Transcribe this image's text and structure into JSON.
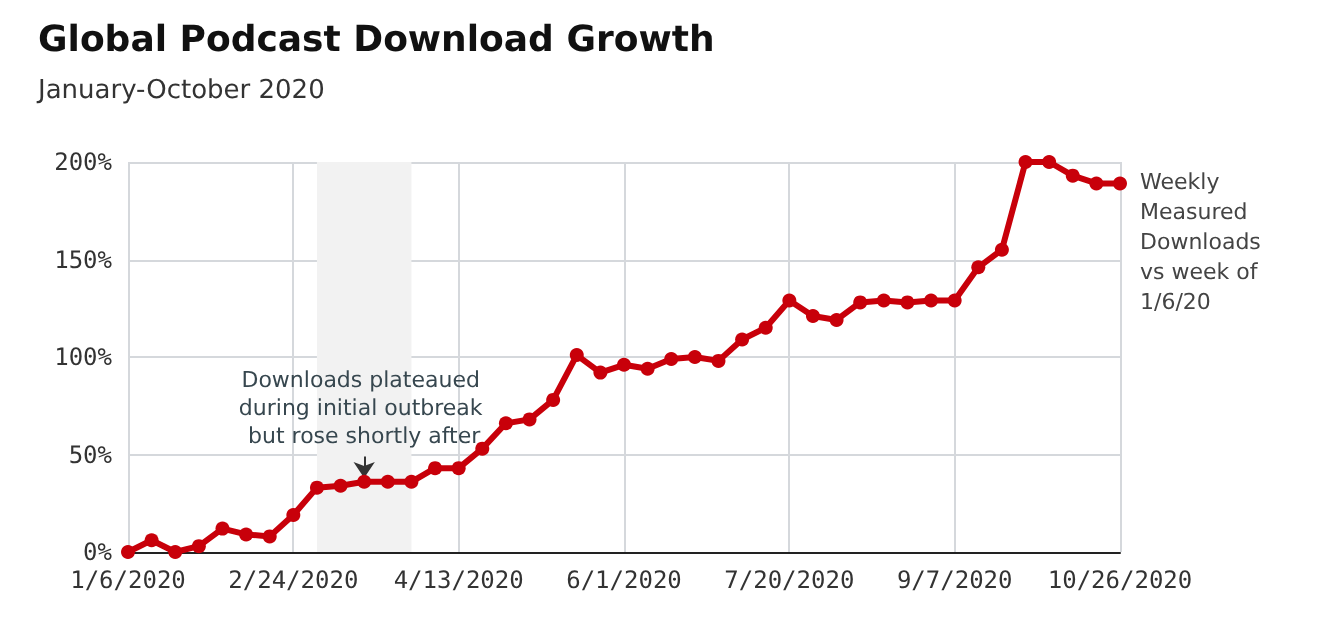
{
  "chart_data": {
    "type": "line",
    "title": "Global Podcast Download Growth",
    "subtitle": "January-October 2020",
    "x": [
      "2020-01-06",
      "2020-01-13",
      "2020-01-20",
      "2020-01-27",
      "2020-02-03",
      "2020-02-10",
      "2020-02-17",
      "2020-02-24",
      "2020-03-02",
      "2020-03-09",
      "2020-03-16",
      "2020-03-23",
      "2020-03-30",
      "2020-04-06",
      "2020-04-13",
      "2020-04-20",
      "2020-04-27",
      "2020-05-04",
      "2020-05-11",
      "2020-05-18",
      "2020-05-25",
      "2020-06-01",
      "2020-06-08",
      "2020-06-15",
      "2020-06-22",
      "2020-06-29",
      "2020-07-06",
      "2020-07-13",
      "2020-07-20",
      "2020-07-27",
      "2020-08-03",
      "2020-08-10",
      "2020-08-17",
      "2020-08-24",
      "2020-08-31",
      "2020-09-07",
      "2020-09-14",
      "2020-09-21",
      "2020-09-28",
      "2020-10-05",
      "2020-10-12",
      "2020-10-19",
      "2020-10-26"
    ],
    "series": [
      {
        "name": "Weekly Measured Downloads vs week of 1/6/20",
        "color": "#c8000a",
        "values": [
          0,
          6,
          0,
          3,
          12,
          9,
          8,
          19,
          33,
          34,
          36,
          36,
          36,
          43,
          43,
          53,
          66,
          68,
          78,
          101,
          92,
          96,
          94,
          99,
          100,
          98,
          109,
          115,
          129,
          121,
          119,
          128,
          129,
          128,
          129,
          129,
          146,
          155,
          200,
          200,
          193,
          189,
          189
        ]
      }
    ],
    "xlim": [
      "2020-01-06",
      "2020-10-26"
    ],
    "xticks": [
      {
        "value": "2020-01-06",
        "label": "1/6/2020"
      },
      {
        "value": "2020-02-24",
        "label": "2/24/2020"
      },
      {
        "value": "2020-04-13",
        "label": "4/13/2020"
      },
      {
        "value": "2020-06-01",
        "label": "6/1/2020"
      },
      {
        "value": "2020-07-20",
        "label": "7/20/2020"
      },
      {
        "value": "2020-09-07",
        "label": "9/7/2020"
      },
      {
        "value": "2020-10-26",
        "label": "10/26/2020"
      }
    ],
    "ylim": [
      0,
      200
    ],
    "yticks": [
      {
        "value": 0,
        "label": "0%"
      },
      {
        "value": 50,
        "label": "50%"
      },
      {
        "value": 100,
        "label": "100%"
      },
      {
        "value": 150,
        "label": "150%"
      },
      {
        "value": 200,
        "label": "200%"
      }
    ],
    "bands": [
      {
        "axis": "x",
        "from": "2020-03-02",
        "to": "2020-03-30",
        "color": "#f2f2f2"
      }
    ],
    "annotations": [
      {
        "text": "Downloads plateaued during initial outbreak but rose shortly after",
        "x": "2020-03-16",
        "y": 36
      }
    ],
    "grid": true,
    "legend": false,
    "marker": "circle",
    "line_style": "solid"
  }
}
